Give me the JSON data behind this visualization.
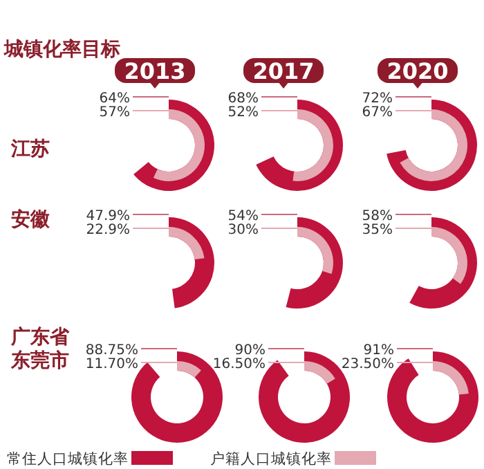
{
  "chart_data": [
    {
      "type": "donut",
      "title": "2013",
      "ylabel": "江苏",
      "annotations": [
        "城镇化率目标"
      ],
      "series": [
        {
          "color": "#c0143c",
          "values": [
            64
          ],
          "value_labels": [
            "64%"
          ]
        },
        {
          "color": "#e4a9b2",
          "values": [
            57
          ],
          "value_labels": [
            "57%"
          ]
        }
      ]
    },
    {
      "type": "donut",
      "title": "2017",
      "series": [
        {
          "color": "#c0143c",
          "values": [
            68
          ],
          "value_labels": [
            "68%"
          ]
        },
        {
          "color": "#e4a9b2",
          "values": [
            52
          ],
          "value_labels": [
            "52%"
          ]
        }
      ]
    },
    {
      "type": "donut",
      "title": "2020",
      "series": [
        {
          "color": "#c0143c",
          "values": [
            72
          ],
          "value_labels": [
            "72%"
          ]
        },
        {
          "color": "#e4a9b2",
          "values": [
            67
          ],
          "value_labels": [
            "67%"
          ]
        }
      ]
    },
    {
      "type": "donut",
      "ylabel": "安徽",
      "series": [
        {
          "color": "#c0143c",
          "values": [
            47.9
          ],
          "value_labels": [
            "47.9%"
          ]
        },
        {
          "color": "#e4a9b2",
          "values": [
            22.9
          ],
          "value_labels": [
            "22.9%"
          ]
        }
      ]
    },
    {
      "type": "donut",
      "series": [
        {
          "color": "#c0143c",
          "values": [
            54
          ],
          "value_labels": [
            "54%"
          ]
        },
        {
          "color": "#e4a9b2",
          "values": [
            30
          ],
          "value_labels": [
            "30%"
          ]
        }
      ]
    },
    {
      "type": "donut",
      "series": [
        {
          "color": "#c0143c",
          "values": [
            58
          ],
          "value_labels": [
            "58%"
          ]
        },
        {
          "color": "#e4a9b2",
          "values": [
            35
          ],
          "value_labels": [
            "35%"
          ]
        }
      ]
    },
    {
      "type": "donut",
      "ylabel": "广东省东莞市",
      "legend": "bottom",
      "series": [
        {
          "name": "常住人口城镇化率",
          "color": "#c0143c",
          "values": [
            88.75
          ],
          "value_labels": [
            "88.75%"
          ]
        },
        {
          "name": "户籍人口城镇化率",
          "color": "#e4a9b2",
          "values": [
            11.7
          ],
          "value_labels": [
            "11.70%"
          ]
        }
      ]
    },
    {
      "type": "donut",
      "series": [
        {
          "color": "#c0143c",
          "values": [
            90
          ],
          "value_labels": [
            "90%"
          ]
        },
        {
          "color": "#e4a9b2",
          "values": [
            16.5
          ],
          "value_labels": [
            "16.50%"
          ]
        }
      ]
    },
    {
      "type": "donut",
      "series": [
        {
          "color": "#c0143c",
          "values": [
            91
          ],
          "value_labels": [
            "91%"
          ]
        },
        {
          "color": "#e4a9b2",
          "values": [
            23.5
          ],
          "value_labels": [
            "23.50%"
          ]
        }
      ]
    }
  ]
}
